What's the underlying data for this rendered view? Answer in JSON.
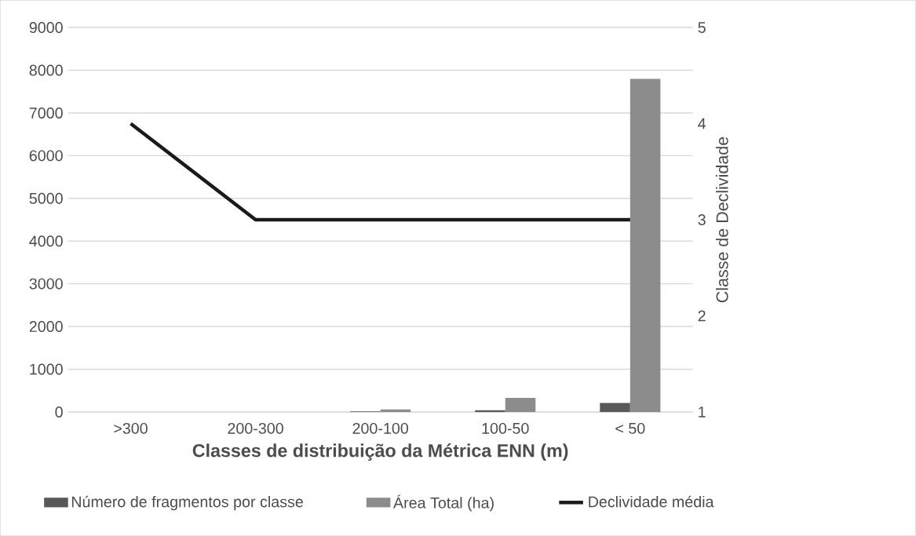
{
  "chart_data": {
    "type": "bar",
    "xlabel": "Classes de distribuição da Métrica ENN (m)",
    "y2label": "Classe de Declividade",
    "categories": [
      ">300",
      "200-300",
      "200-100",
      "100-50",
      "< 50"
    ],
    "series": [
      {
        "name": "Número de fragmentos por classe",
        "color": "#595959",
        "values": [
          0,
          0,
          10,
          40,
          210
        ]
      },
      {
        "name": "Área Total (ha)",
        "color": "#8c8c8c",
        "values": [
          0,
          0,
          60,
          330,
          7800
        ]
      },
      {
        "name": "Declividade média",
        "type": "line",
        "axis": "y2",
        "color": "#1a1a1a",
        "values": [
          4,
          3,
          3,
          3,
          3
        ]
      }
    ],
    "ylim": [
      0,
      9000
    ],
    "yticks": [
      0,
      1000,
      2000,
      3000,
      4000,
      5000,
      6000,
      7000,
      8000,
      9000
    ],
    "y2lim": [
      1,
      5
    ],
    "y2ticks": [
      1,
      2,
      3,
      4,
      5
    ],
    "grid": "y",
    "legend": "bottom"
  }
}
